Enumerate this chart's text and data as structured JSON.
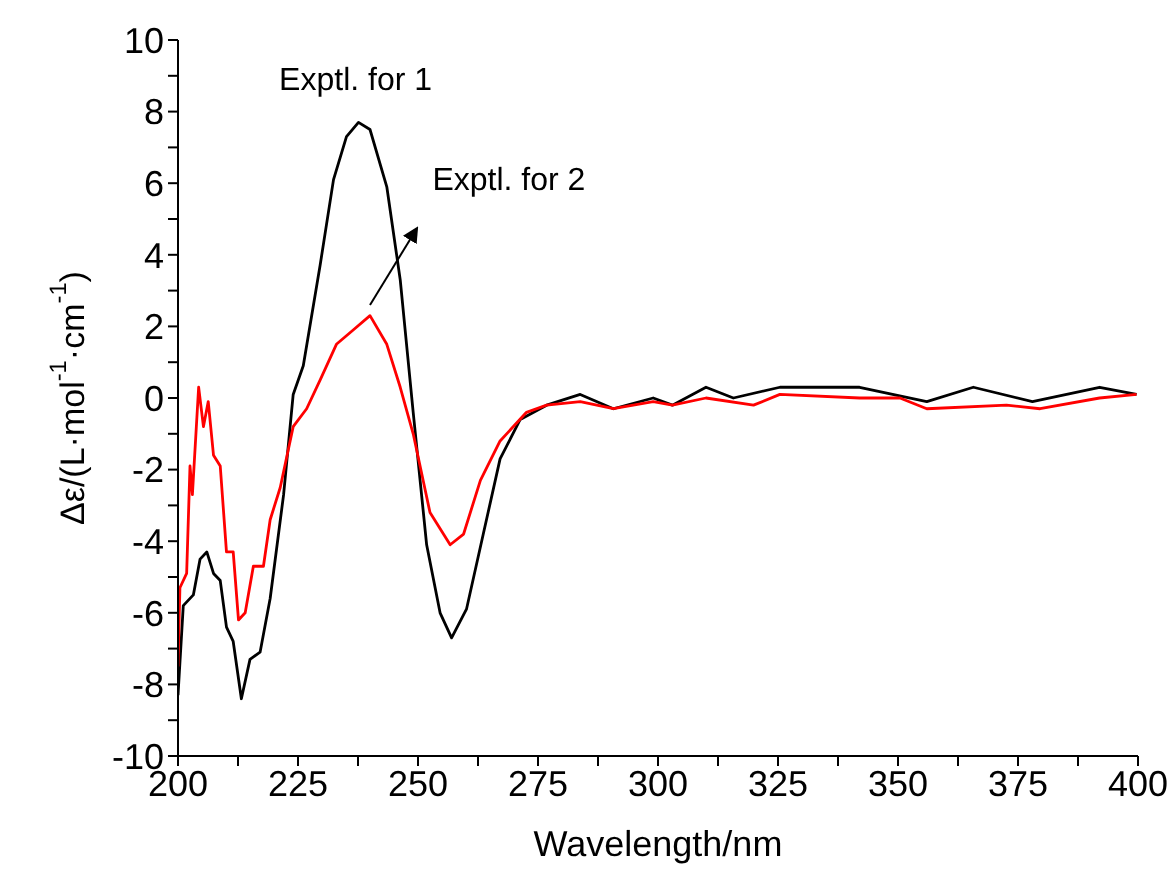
{
  "chart_data": {
    "type": "line",
    "xlabel": "Wavelength/nm",
    "ylabel": "Δε/(L·mol$^{-1}$·cm$^{-1}$)",
    "xlim": [
      200,
      400
    ],
    "xticks": [
      200,
      {
        "value": 212.5,
        "label": null
      },
      225,
      {
        "value": 237.5,
        "label": null
      },
      250,
      {
        "value": 262.5,
        "label": null
      },
      275,
      {
        "value": 287.5,
        "label": null
      },
      300,
      {
        "value": 312.5,
        "label": null
      },
      325,
      {
        "value": 337.5,
        "label": null
      },
      350,
      {
        "value": 362.5,
        "label": null
      },
      375,
      {
        "value": 387.5,
        "label": null
      },
      400
    ],
    "ylim": [
      -10,
      10
    ],
    "yticks": [
      -10,
      {
        "value": -9,
        "label": null
      },
      -8,
      {
        "value": -7,
        "label": null
      },
      -6,
      {
        "value": -5,
        "label": null
      },
      -4,
      {
        "value": -3,
        "label": null
      },
      -2,
      {
        "value": -1,
        "label": null
      },
      0,
      {
        "value": 1,
        "label": null
      },
      2,
      {
        "value": 3,
        "label": null
      },
      4,
      {
        "value": 5,
        "label": null
      },
      6,
      {
        "value": 7,
        "label": null
      },
      8,
      {
        "value": 9,
        "label": null
      },
      10
    ],
    "grid": false,
    "legend": false,
    "marker": "none",
    "line_style": "solid",
    "series": [
      {
        "name": "Exptl. for 1",
        "color": "#000000",
        "x": [
          200,
          201.1,
          203.2,
          204.6,
          206,
          207.4,
          208.8,
          210.1,
          211.5,
          213.2,
          215,
          217.1,
          219.2,
          222,
          224,
          226.1,
          229.6,
          232.4,
          235.1,
          237.6,
          240,
          243.5,
          246.3,
          249,
          251.8,
          254.6,
          257,
          260.1,
          263.6,
          267.1,
          271.3,
          276.8,
          283.8,
          290.7,
          299,
          303,
          310,
          315.7,
          325.4,
          342,
          356,
          365.7,
          378,
          392,
          399.7
        ],
        "values": [
          -8.3,
          -5.8,
          -5.5,
          -4.5,
          -4.3,
          -4.9,
          -5.1,
          -6.4,
          -6.8,
          -8.4,
          -7.3,
          -7.1,
          -5.6,
          -2.7,
          0.1,
          0.9,
          3.7,
          6.1,
          7.3,
          7.7,
          7.5,
          5.9,
          3.3,
          -0.4,
          -4.1,
          -6,
          -6.7,
          -5.9,
          -3.8,
          -1.7,
          -0.6,
          -0.2,
          0.1,
          -0.3,
          0,
          -0.2,
          0.3,
          0,
          0.3,
          0.3,
          -0.1,
          0.3,
          -0.1,
          0.3,
          0.1
        ]
      },
      {
        "name": "Exptl. for 2",
        "color": "#ff0000",
        "x": [
          200,
          200.4,
          201.8,
          202.5,
          203,
          204.3,
          205.3,
          206.3,
          207.4,
          208.8,
          210.1,
          211.5,
          212.6,
          214,
          215.7,
          217.8,
          219.2,
          221.3,
          224,
          226.8,
          229.6,
          233,
          236.5,
          240,
          243.5,
          246.3,
          249,
          252.5,
          256.7,
          259.5,
          263,
          267.1,
          272.6,
          276.8,
          283.8,
          290.7,
          299,
          303,
          310,
          319.9,
          325.4,
          342,
          350.4,
          356,
          372.6,
          379.6,
          392,
          399.7
        ],
        "values": [
          -7.5,
          -5.3,
          -4.9,
          -1.9,
          -2.7,
          0.3,
          -0.8,
          -0.1,
          -1.6,
          -1.9,
          -4.3,
          -4.3,
          -6.2,
          -6,
          -4.7,
          -4.7,
          -3.4,
          -2.5,
          -0.8,
          -0.3,
          0.5,
          1.5,
          1.9,
          2.3,
          1.5,
          0.3,
          -1,
          -3.2,
          -4.1,
          -3.8,
          -2.3,
          -1.2,
          -0.4,
          -0.2,
          -0.1,
          -0.3,
          -0.1,
          -0.2,
          0,
          -0.2,
          0.1,
          0,
          0,
          -0.3,
          -0.2,
          -0.3,
          0,
          0.1
        ]
      }
    ]
  }
}
